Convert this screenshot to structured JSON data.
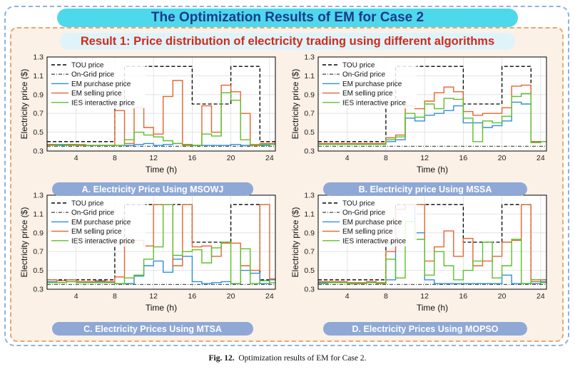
{
  "title": "The Optimization Results of EM for Case 2",
  "subtitle": "Result 1: Price distribution of electricity trading using different algorithms",
  "figure_caption": {
    "label": "Fig. 12.",
    "text": "Optimization results of EM for Case 2."
  },
  "colors": {
    "tou": "#000000",
    "ongrid": "#555555",
    "purchase": "#2e8fd8",
    "selling": "#e2662e",
    "ies": "#5cbf2a"
  },
  "chart_data": [
    {
      "type": "line",
      "caption": "A. Electricity Price Using MSOWJ",
      "xlabel": "Time (h)",
      "ylabel": "Electricity price ($)",
      "xlim": [
        1,
        24.6
      ],
      "ylim": [
        0.3,
        1.3
      ],
      "xticks": [
        "4",
        "8",
        "12",
        "16",
        "20",
        "24"
      ],
      "yticks": [
        "0.3",
        "0.5",
        "0.7",
        "0.9",
        "1.1",
        "1.3"
      ],
      "grid": true,
      "legend": "top-left",
      "step": true,
      "x": [
        1,
        2,
        3,
        4,
        5,
        6,
        7,
        8,
        9,
        10,
        11,
        12,
        13,
        14,
        15,
        16,
        17,
        18,
        19,
        20,
        21,
        22,
        23,
        24
      ],
      "series": [
        {
          "name": "TOU price",
          "style": "dashed",
          "color": "#000000",
          "values": [
            0.4,
            0.4,
            0.4,
            0.4,
            0.4,
            0.4,
            0.4,
            0.8,
            1.2,
            1.2,
            1.2,
            1.2,
            1.2,
            1.2,
            1.2,
            0.8,
            0.8,
            0.8,
            0.8,
            1.2,
            1.2,
            1.2,
            0.4,
            0.4
          ]
        },
        {
          "name": "On-Grid price",
          "style": "dashdot",
          "color": "#555555",
          "values": [
            0.35,
            0.35,
            0.35,
            0.35,
            0.35,
            0.35,
            0.35,
            0.35,
            0.35,
            0.35,
            0.35,
            0.35,
            0.35,
            0.35,
            0.35,
            0.35,
            0.35,
            0.35,
            0.35,
            0.35,
            0.35,
            0.35,
            0.35,
            0.35
          ]
        },
        {
          "name": "EM purchase price",
          "style": "solid",
          "color": "#2e8fd8",
          "values": [
            0.37,
            0.36,
            0.37,
            0.36,
            0.36,
            0.36,
            0.36,
            0.36,
            0.36,
            0.37,
            0.38,
            0.36,
            0.37,
            0.38,
            0.37,
            0.36,
            0.36,
            0.36,
            0.36,
            0.37,
            0.36,
            0.36,
            0.36,
            0.37
          ]
        },
        {
          "name": "EM selling price",
          "style": "solid",
          "color": "#e2662e",
          "values": [
            0.37,
            0.37,
            0.37,
            0.36,
            0.36,
            0.36,
            0.36,
            0.73,
            0.38,
            0.76,
            0.55,
            0.48,
            0.88,
            1.05,
            0.36,
            0.36,
            0.78,
            0.5,
            1.0,
            0.93,
            0.7,
            0.36,
            0.38,
            0.38
          ]
        },
        {
          "name": "IES interactive price",
          "style": "solid",
          "color": "#5cbf2a",
          "values": [
            0.36,
            0.37,
            0.36,
            0.37,
            0.36,
            0.36,
            0.36,
            0.36,
            0.42,
            0.5,
            0.47,
            0.45,
            0.41,
            0.38,
            0.37,
            0.36,
            0.48,
            0.46,
            0.92,
            0.84,
            0.42,
            0.37,
            0.37,
            0.37
          ]
        }
      ]
    },
    {
      "type": "line",
      "caption": "B. Electricity price Using MSSA",
      "xlabel": "Time (h)",
      "ylabel": "Electricity price ($)",
      "xlim": [
        1,
        24.6
      ],
      "ylim": [
        0.3,
        1.3
      ],
      "xticks": [
        "4",
        "8",
        "12",
        "16",
        "20",
        "24"
      ],
      "yticks": [
        "0.3",
        "0.5",
        "0.7",
        "0.9",
        "1.1",
        "1.3"
      ],
      "grid": true,
      "legend": "top-left",
      "step": true,
      "x": [
        1,
        2,
        3,
        4,
        5,
        6,
        7,
        8,
        9,
        10,
        11,
        12,
        13,
        14,
        15,
        16,
        17,
        18,
        19,
        20,
        21,
        22,
        23,
        24
      ],
      "series": [
        {
          "name": "TOU price",
          "style": "dashed",
          "color": "#000000",
          "values": [
            0.4,
            0.4,
            0.4,
            0.4,
            0.4,
            0.4,
            0.4,
            0.8,
            1.2,
            1.2,
            1.2,
            1.2,
            1.2,
            1.2,
            1.2,
            0.8,
            0.8,
            0.8,
            0.8,
            1.2,
            1.2,
            1.2,
            0.4,
            0.4
          ]
        },
        {
          "name": "On-Grid price",
          "style": "dashdot",
          "color": "#555555",
          "values": [
            0.35,
            0.35,
            0.35,
            0.35,
            0.35,
            0.35,
            0.35,
            0.35,
            0.35,
            0.35,
            0.35,
            0.35,
            0.35,
            0.35,
            0.35,
            0.35,
            0.35,
            0.35,
            0.35,
            0.35,
            0.35,
            0.35,
            0.35,
            0.35
          ]
        },
        {
          "name": "EM purchase price",
          "style": "solid",
          "color": "#2e8fd8",
          "values": [
            0.37,
            0.37,
            0.37,
            0.37,
            0.37,
            0.37,
            0.37,
            0.4,
            0.42,
            0.65,
            0.62,
            0.68,
            0.7,
            0.73,
            0.78,
            0.6,
            0.6,
            0.55,
            0.57,
            0.62,
            0.82,
            0.8,
            0.39,
            0.4
          ]
        },
        {
          "name": "EM selling price",
          "style": "solid",
          "color": "#e2662e",
          "values": [
            0.38,
            0.38,
            0.38,
            0.38,
            0.38,
            0.38,
            0.38,
            0.44,
            0.47,
            0.78,
            0.75,
            0.83,
            0.92,
            0.98,
            0.93,
            0.72,
            0.68,
            0.7,
            0.7,
            0.76,
            0.99,
            1.0,
            0.4,
            0.4
          ]
        },
        {
          "name": "IES interactive price",
          "style": "solid",
          "color": "#5cbf2a",
          "values": [
            0.37,
            0.37,
            0.37,
            0.37,
            0.37,
            0.37,
            0.37,
            0.42,
            0.45,
            0.7,
            0.66,
            0.8,
            0.75,
            0.86,
            0.85,
            0.65,
            0.4,
            0.62,
            0.6,
            0.67,
            0.88,
            0.91,
            0.39,
            0.4
          ]
        }
      ]
    },
    {
      "type": "line",
      "caption": "C. Electricity Prices Using MTSA",
      "xlabel": "Time (h)",
      "ylabel": "Electricity price ($)",
      "xlim": [
        1,
        24.6
      ],
      "ylim": [
        0.3,
        1.3
      ],
      "xticks": [
        "4",
        "8",
        "12",
        "16",
        "20",
        "24"
      ],
      "yticks": [
        "0.3",
        "0.5",
        "0.7",
        "0.9",
        "1.1",
        "1.3"
      ],
      "grid": true,
      "legend": "top-left",
      "step": true,
      "x": [
        1,
        2,
        3,
        4,
        5,
        6,
        7,
        8,
        9,
        10,
        11,
        12,
        13,
        14,
        15,
        16,
        17,
        18,
        19,
        20,
        21,
        22,
        23,
        24
      ],
      "series": [
        {
          "name": "TOU price",
          "style": "dashed",
          "color": "#000000",
          "values": [
            0.4,
            0.4,
            0.4,
            0.4,
            0.4,
            0.4,
            0.4,
            0.8,
            1.2,
            1.2,
            1.2,
            1.2,
            1.2,
            1.2,
            1.2,
            0.8,
            0.8,
            0.8,
            0.8,
            1.2,
            1.2,
            1.2,
            0.4,
            0.4
          ]
        },
        {
          "name": "On-Grid price",
          "style": "dashdot",
          "color": "#555555",
          "values": [
            0.35,
            0.35,
            0.35,
            0.35,
            0.35,
            0.35,
            0.35,
            0.35,
            0.35,
            0.35,
            0.35,
            0.35,
            0.35,
            0.35,
            0.35,
            0.35,
            0.35,
            0.35,
            0.35,
            0.35,
            0.35,
            0.35,
            0.35,
            0.35
          ]
        },
        {
          "name": "EM purchase price",
          "style": "solid",
          "color": "#2e8fd8",
          "values": [
            0.38,
            0.37,
            0.38,
            0.37,
            0.37,
            0.38,
            0.37,
            0.36,
            0.36,
            0.44,
            0.55,
            0.6,
            0.48,
            0.62,
            0.65,
            0.38,
            0.36,
            0.37,
            0.38,
            0.36,
            0.5,
            0.47,
            0.36,
            0.4
          ]
        },
        {
          "name": "EM selling price",
          "style": "solid",
          "color": "#e2662e",
          "values": [
            0.4,
            0.39,
            0.4,
            0.38,
            0.38,
            0.39,
            0.38,
            0.43,
            0.79,
            0.82,
            0.76,
            1.2,
            1.2,
            0.55,
            1.2,
            0.75,
            0.76,
            0.65,
            0.79,
            0.79,
            0.55,
            0.5,
            1.2,
            0.41
          ]
        },
        {
          "name": "IES interactive price",
          "style": "solid",
          "color": "#5cbf2a",
          "values": [
            0.37,
            0.37,
            0.38,
            0.37,
            0.37,
            0.37,
            0.37,
            0.36,
            0.42,
            0.45,
            0.62,
            0.75,
            1.2,
            0.66,
            0.7,
            0.72,
            0.58,
            0.74,
            0.8,
            0.36,
            0.73,
            0.36,
            0.39,
            0.37
          ]
        }
      ]
    },
    {
      "type": "line",
      "caption": "D. Electricity Prices Using MOPSO",
      "xlabel": "Time (h)",
      "ylabel": "Electricity price ($)",
      "xlim": [
        1,
        24.6
      ],
      "ylim": [
        0.3,
        1.3
      ],
      "xticks": [
        "4",
        "8",
        "12",
        "16",
        "20",
        "24"
      ],
      "yticks": [
        "0.3",
        "0.5",
        "0.7",
        "0.9",
        "1.1",
        "1.3"
      ],
      "grid": true,
      "legend": "top-left",
      "step": true,
      "x": [
        1,
        2,
        3,
        4,
        5,
        6,
        7,
        8,
        9,
        10,
        11,
        12,
        13,
        14,
        15,
        16,
        17,
        18,
        19,
        20,
        21,
        22,
        23,
        24
      ],
      "series": [
        {
          "name": "TOU price",
          "style": "dashed",
          "color": "#000000",
          "values": [
            0.4,
            0.4,
            0.4,
            0.4,
            0.4,
            0.4,
            0.4,
            0.8,
            1.2,
            1.2,
            1.2,
            1.2,
            1.2,
            1.2,
            1.2,
            0.8,
            0.8,
            0.8,
            0.8,
            1.2,
            1.2,
            1.2,
            0.4,
            0.4
          ]
        },
        {
          "name": "On-Grid price",
          "style": "dashdot",
          "color": "#555555",
          "values": [
            0.35,
            0.35,
            0.35,
            0.35,
            0.35,
            0.35,
            0.35,
            0.35,
            0.35,
            0.35,
            0.35,
            0.35,
            0.35,
            0.35,
            0.35,
            0.35,
            0.35,
            0.35,
            0.35,
            0.35,
            0.35,
            0.35,
            0.35,
            0.35
          ]
        },
        {
          "name": "EM purchase price",
          "style": "solid",
          "color": "#2e8fd8",
          "values": [
            0.37,
            0.37,
            0.37,
            0.36,
            0.36,
            0.37,
            0.36,
            0.4,
            1.15,
            1.2,
            0.9,
            0.4,
            0.36,
            0.36,
            0.36,
            0.36,
            0.36,
            0.36,
            0.36,
            0.45,
            0.36,
            0.36,
            0.36,
            0.38
          ]
        },
        {
          "name": "EM selling price",
          "style": "solid",
          "color": "#e2662e",
          "values": [
            0.38,
            0.38,
            0.38,
            0.37,
            0.37,
            0.38,
            0.37,
            0.7,
            1.15,
            1.2,
            1.2,
            0.6,
            0.75,
            0.92,
            0.65,
            0.84,
            0.55,
            0.6,
            0.65,
            0.8,
            0.82,
            1.2,
            0.38,
            0.4
          ]
        },
        {
          "name": "IES interactive price",
          "style": "solid",
          "color": "#5cbf2a",
          "values": [
            0.36,
            0.37,
            0.37,
            0.36,
            0.36,
            0.37,
            0.36,
            0.62,
            0.42,
            1.02,
            0.83,
            0.45,
            0.7,
            0.55,
            0.4,
            0.5,
            0.6,
            0.8,
            0.42,
            0.55,
            0.83,
            0.36,
            0.4,
            0.37
          ]
        }
      ]
    }
  ]
}
